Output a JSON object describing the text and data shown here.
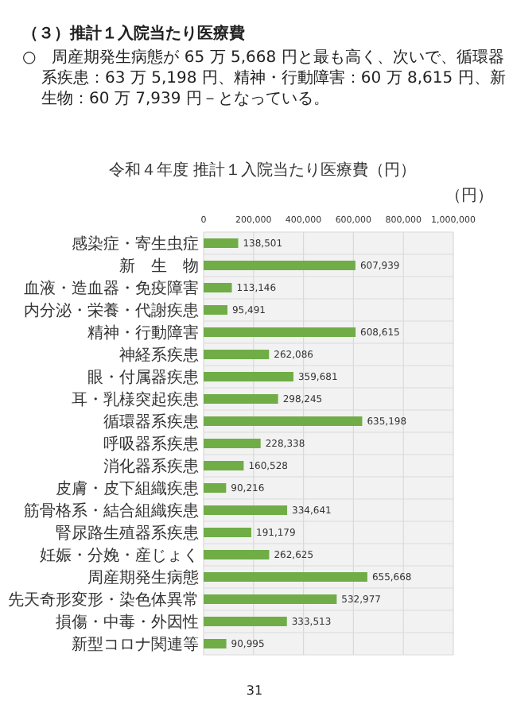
{
  "chart_data": {
    "type": "bar",
    "orientation": "horizontal",
    "title": "令和４年度 推計１入院当たり医療費（円）",
    "annotations": [
      "（３）推計１入院当たり医療費",
      "○　周産期発生病態が 65 万 5,668 円と最も高く、次いで、循環器系疾患：63 万 5,198 円、精神・行動障害：60 万 8,615 円、新生物：60 万 7,939 円－となっている。",
      "（円）",
      "31"
    ],
    "categories": [
      "感染症・寄生虫症",
      "新　生　物",
      "血液・造血器・免疫障害",
      "内分泌・栄養・代謝疾患",
      "精神・行動障害",
      "神経系疾患",
      "眼・付属器疾患",
      "耳・乳様突起疾患",
      "循環器系疾患",
      "呼吸器系疾患",
      "消化器系疾患",
      "皮膚・皮下組織疾患",
      "筋骨格系・結合組織疾患",
      "腎尿路生殖器系疾患",
      "妊娠・分娩・産じょく",
      "周産期発生病態",
      "先天奇形変形・染色体異常",
      "損傷・中毒・外因性",
      "新型コロナ関連等"
    ],
    "values": [
      138501,
      607939,
      113146,
      95491,
      608615,
      262086,
      359681,
      298245,
      635198,
      228338,
      160528,
      90216,
      334641,
      191179,
      262625,
      655668,
      532977,
      333513,
      90995
    ],
    "value_labels": [
      "138,501",
      "607,939",
      "113,146",
      "95,491",
      "608,615",
      "262,086",
      "359,681",
      "298,245",
      "635,198",
      "228,338",
      "160,528",
      "90,216",
      "334,641",
      "191,179",
      "262,625",
      "655,668",
      "532,977",
      "333,513",
      "90,995"
    ],
    "color": "#70ad47",
    "xlim": [
      0,
      1000000
    ],
    "xticks": [
      0,
      {
        "value": 200000,
        "label": "200,000"
      },
      {
        "value": 400000,
        "label": "400,000"
      },
      {
        "value": 600000,
        "label": "600,000"
      },
      {
        "value": 800000,
        "label": "800,000"
      },
      {
        "value": 1000000,
        "label": "1,000,000"
      }
    ],
    "grid": true
  }
}
